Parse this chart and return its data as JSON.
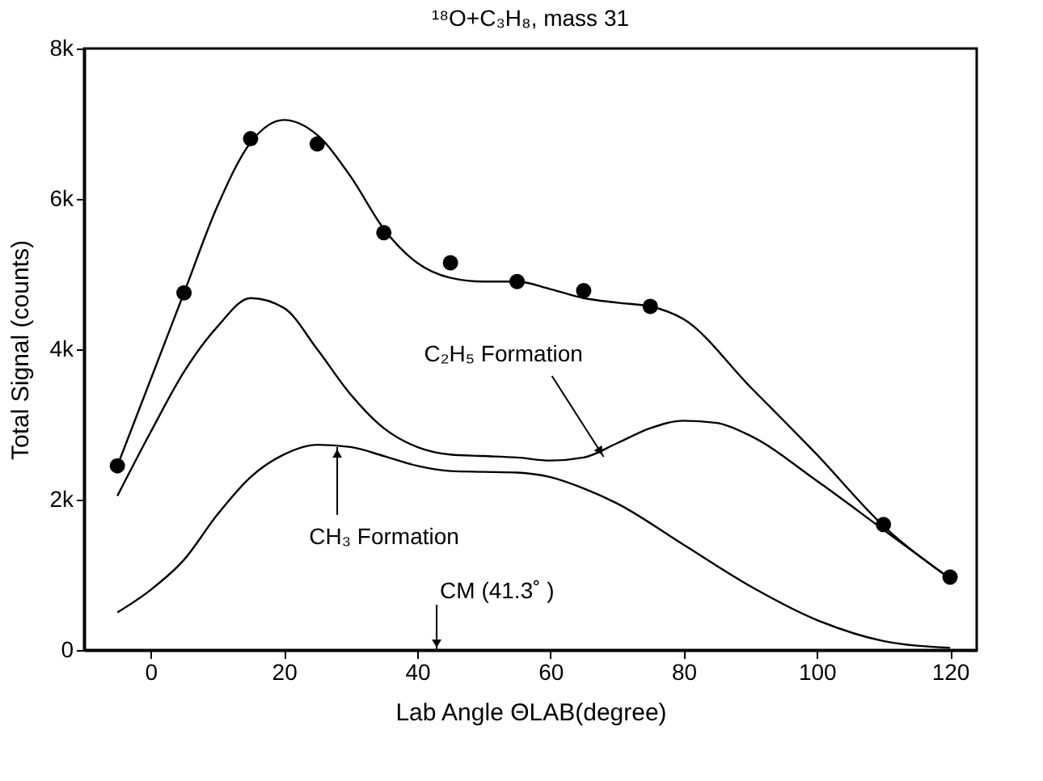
{
  "chart_data": {
    "type": "line",
    "title": "¹⁸O+C₃H₈, mass 31",
    "xlabel": "Lab Angle  ΘLAB(degree)",
    "ylabel": "Total Signal (counts)",
    "xlim": [
      -10,
      124
    ],
    "xticks": [
      0,
      20,
      40,
      60,
      80,
      100,
      120
    ],
    "ylim": [
      0,
      8000
    ],
    "yticks": [
      0,
      {
        "value": 2000,
        "label": "2k"
      },
      {
        "value": 4000,
        "label": "4k"
      },
      {
        "value": 6000,
        "label": "6k"
      },
      {
        "value": 8000,
        "label": "8k"
      }
    ],
    "grid": false,
    "series": [
      {
        "type": "scatter",
        "marker": "circle",
        "color": "#000000",
        "x": [
          -5,
          5,
          15,
          25,
          35,
          45,
          55,
          65,
          75,
          110,
          120
        ],
        "values": [
          2450,
          4750,
          6800,
          6730,
          5550,
          5150,
          4900,
          4780,
          4570,
          1670,
          970
        ]
      },
      {
        "type": "line",
        "marker": "none",
        "color": "#000000",
        "x": [
          -5,
          0,
          5,
          10,
          15,
          20,
          25,
          30,
          35,
          40,
          45,
          50,
          55,
          60,
          65,
          70,
          75,
          80,
          90,
          100,
          110,
          120
        ],
        "values": [
          2450,
          3600,
          4750,
          5900,
          6750,
          7050,
          6850,
          6300,
          5600,
          5150,
          4950,
          4900,
          4900,
          4800,
          4680,
          4620,
          4570,
          4400,
          3500,
          2600,
          1650,
          950
        ]
      },
      {
        "type": "line",
        "marker": "none",
        "color": "#000000",
        "x": [
          -5,
          0,
          5,
          10,
          15,
          20,
          25,
          30,
          35,
          40,
          45,
          50,
          55,
          60,
          65,
          70,
          75,
          80,
          85,
          90,
          100,
          110,
          120
        ],
        "values": [
          2050,
          2900,
          3700,
          4300,
          4680,
          4550,
          4000,
          3400,
          2950,
          2700,
          2600,
          2580,
          2560,
          2520,
          2560,
          2750,
          2950,
          3050,
          3020,
          2850,
          2250,
          1600,
          950
        ]
      },
      {
        "type": "line",
        "marker": "none",
        "color": "#000000",
        "x": [
          -5,
          0,
          5,
          10,
          15,
          20,
          25,
          30,
          35,
          40,
          45,
          50,
          55,
          60,
          65,
          70,
          80,
          90,
          100,
          110,
          120
        ],
        "values": [
          500,
          800,
          1200,
          1800,
          2300,
          2600,
          2730,
          2700,
          2580,
          2450,
          2380,
          2370,
          2360,
          2300,
          2150,
          1950,
          1400,
          850,
          400,
          120,
          30
        ]
      }
    ],
    "annotations": [
      {
        "text": "C₂H₅ Formation",
        "x": 68,
        "y": 2570
      },
      {
        "text": "CH₃ Formation",
        "x": 28,
        "y": 2700
      },
      "CM (41.3˚ )"
    ]
  }
}
